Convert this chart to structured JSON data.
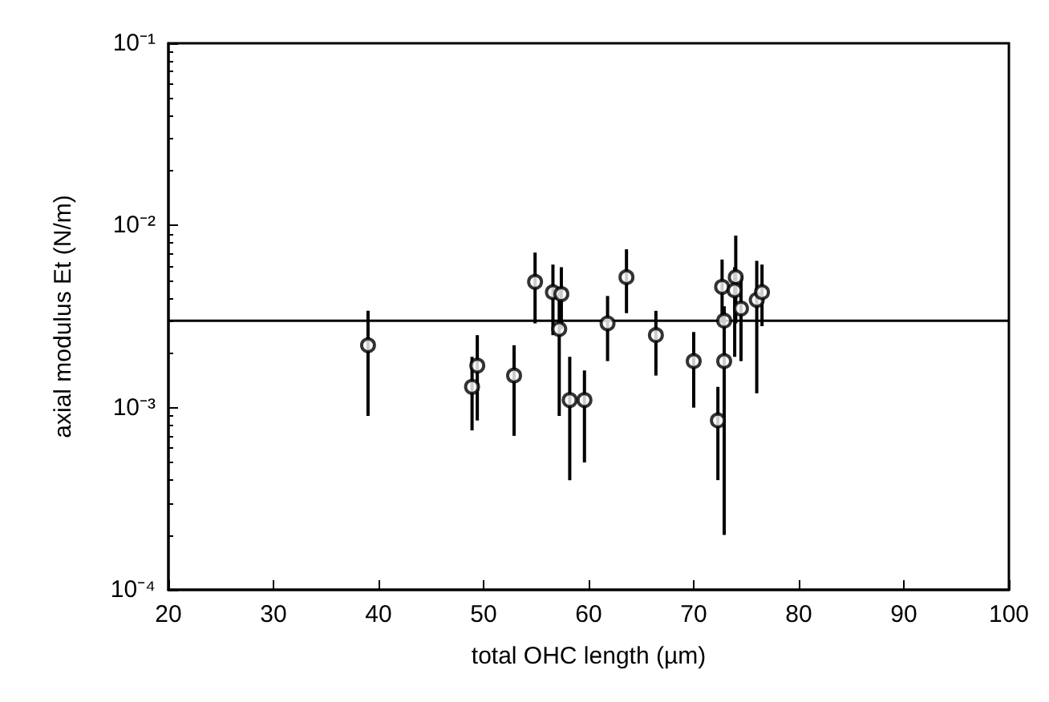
{
  "chart_data": {
    "type": "scatter",
    "xlabel": "total OHC length (µm)",
    "ylabel": "axial modulus Et (N/m)",
    "x": [
      39.0,
      48.9,
      49.4,
      52.9,
      54.9,
      56.6,
      57.4,
      57.2,
      58.2,
      59.6,
      61.8,
      63.6,
      66.4,
      70.0,
      72.3,
      72.7,
      72.9,
      72.9,
      74.0,
      73.9,
      74.5,
      76.0,
      76.5
    ],
    "values": [
      0.0022,
      0.0013,
      0.0017,
      0.0015,
      0.0049,
      0.0043,
      0.0042,
      0.0027,
      0.0011,
      0.0011,
      0.0029,
      0.0052,
      0.0025,
      0.0018,
      0.00085,
      0.0046,
      0.003,
      0.0018,
      0.0052,
      0.0044,
      0.0035,
      0.0039,
      0.0043
    ],
    "errors": [
      [
        0.0009,
        0.0034
      ],
      [
        0.00075,
        0.0019
      ],
      [
        0.00085,
        0.0025
      ],
      [
        0.0007,
        0.0022
      ],
      [
        0.0029,
        0.0071
      ],
      [
        0.0025,
        0.0061
      ],
      [
        0.0027,
        0.0059
      ],
      [
        0.0009,
        0.0039
      ],
      [
        0.0004,
        0.0019
      ],
      [
        0.0005,
        0.0016
      ],
      [
        0.0018,
        0.0041
      ],
      [
        0.0033,
        0.0074
      ],
      [
        0.0015,
        0.0034
      ],
      [
        0.001,
        0.0026
      ],
      [
        0.0004,
        0.0013
      ],
      [
        0.0029,
        0.0065
      ],
      [
        0.0019,
        0.0036
      ],
      [
        0.0002,
        0.0034
      ],
      [
        0.0029,
        0.0088
      ],
      [
        0.0019,
        0.0059
      ],
      [
        0.0018,
        0.0053
      ],
      [
        0.0012,
        0.0064
      ],
      [
        0.0028,
        0.0061
      ]
    ],
    "color": "#000000",
    "marker": "circle",
    "log": "y",
    "grid": false,
    "xlim": [
      20,
      100
    ],
    "xticks": [
      20,
      30,
      40,
      50,
      60,
      70,
      80,
      90,
      100
    ],
    "ylim": [
      0.0001,
      0.1
    ],
    "yticks": [
      {
        "value": 0.0001,
        "label": "10⁻⁴"
      },
      {
        "value": 0.001,
        "label": "10⁻³"
      },
      {
        "value": 0.01,
        "label": "10⁻²"
      },
      {
        "value": 0.1,
        "label": "10⁻¹"
      }
    ],
    "ref_lines": [
      {
        "axis": "y",
        "value": 0.003,
        "color": "#000000"
      }
    ]
  }
}
